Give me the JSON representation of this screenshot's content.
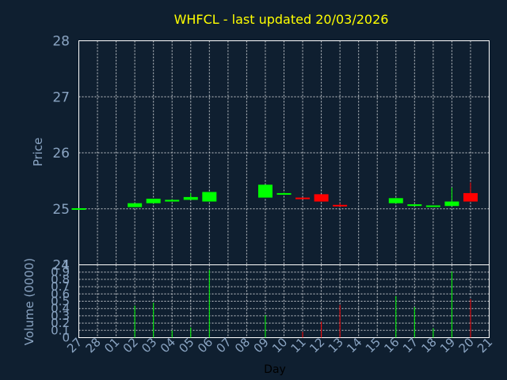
{
  "chart_data": {
    "type": "candlestick",
    "title": "WHFCL - last updated 20/03/2026",
    "xlabel": "Day",
    "ylabel": "Price",
    "volume_label": "Volume (0000)",
    "days": [
      "27",
      "28",
      "01",
      "02",
      "03",
      "04",
      "05",
      "06",
      "07",
      "08",
      "09",
      "10",
      "11",
      "12",
      "13",
      "14",
      "15",
      "16",
      "17",
      "18",
      "19",
      "20",
      "21"
    ],
    "price_ylim": [
      24,
      28
    ],
    "price_ticks": [
      24,
      25,
      26,
      27,
      28
    ],
    "volume_ylim": [
      0,
      1
    ],
    "volume_ticks": [
      "0",
      "0.1",
      "0.2",
      "0.3",
      "0.4",
      "0.5",
      "0.6",
      "0.7",
      "0.8",
      "0.9",
      "1"
    ],
    "grid": true,
    "candles": [
      {
        "day": "27",
        "open": 25.0,
        "close": 25.01,
        "high": 25.01,
        "low": 25.0,
        "color": "#00ff00"
      },
      {
        "day": "02",
        "open": 25.03,
        "close": 25.1,
        "high": 25.1,
        "low": 25.03,
        "color": "#00ff00"
      },
      {
        "day": "03",
        "open": 25.1,
        "close": 25.18,
        "high": 25.18,
        "low": 25.1,
        "color": "#00ff00"
      },
      {
        "day": "04",
        "open": 25.13,
        "close": 25.16,
        "high": 25.17,
        "low": 25.13,
        "color": "#00ff00"
      },
      {
        "day": "05",
        "open": 25.16,
        "close": 25.21,
        "high": 25.28,
        "low": 25.16,
        "color": "#00ff00"
      },
      {
        "day": "06",
        "open": 25.13,
        "close": 25.3,
        "high": 25.3,
        "low": 25.13,
        "color": "#00ff00"
      },
      {
        "day": "09",
        "open": 25.2,
        "close": 25.43,
        "high": 25.43,
        "low": 25.2,
        "color": "#00ff00"
      },
      {
        "day": "10",
        "open": 25.26,
        "close": 25.28,
        "high": 25.29,
        "low": 25.26,
        "color": "#00ff00"
      },
      {
        "day": "11",
        "open": 25.2,
        "close": 25.18,
        "high": 25.2,
        "low": 25.18,
        "color": "#ff0000"
      },
      {
        "day": "12",
        "open": 25.26,
        "close": 25.13,
        "high": 25.26,
        "low": 25.13,
        "color": "#ff0000"
      },
      {
        "day": "13",
        "open": 25.07,
        "close": 25.05,
        "high": 25.1,
        "low": 25.05,
        "color": "#ff0000"
      },
      {
        "day": "16",
        "open": 25.1,
        "close": 25.19,
        "high": 25.19,
        "low": 25.1,
        "color": "#00ff00"
      },
      {
        "day": "17",
        "open": 25.05,
        "close": 25.08,
        "high": 25.08,
        "low": 25.05,
        "color": "#00ff00"
      },
      {
        "day": "18",
        "open": 25.05,
        "close": 25.06,
        "high": 25.06,
        "low": 25.04,
        "color": "#00ff00"
      },
      {
        "day": "19",
        "open": 25.05,
        "close": 25.13,
        "high": 25.38,
        "low": 25.05,
        "color": "#00ff00"
      },
      {
        "day": "20",
        "open": 25.28,
        "close": 25.13,
        "high": 25.47,
        "low": 25.13,
        "color": "#ff0000"
      }
    ],
    "volumes": [
      {
        "day": "02",
        "value": 0.44,
        "color": "#00ff00"
      },
      {
        "day": "03",
        "value": 0.48,
        "color": "#00ff00"
      },
      {
        "day": "04",
        "value": 0.1,
        "color": "#00ff00"
      },
      {
        "day": "05",
        "value": 0.14,
        "color": "#00ff00"
      },
      {
        "day": "06",
        "value": 0.93,
        "color": "#00ff00"
      },
      {
        "day": "09",
        "value": 0.31,
        "color": "#00ff00"
      },
      {
        "day": "11",
        "value": 0.08,
        "color": "#ff0000"
      },
      {
        "day": "12",
        "value": 0.22,
        "color": "#ff0000"
      },
      {
        "day": "13",
        "value": 0.45,
        "color": "#ff0000"
      },
      {
        "day": "16",
        "value": 0.57,
        "color": "#00ff00"
      },
      {
        "day": "17",
        "value": 0.42,
        "color": "#00ff00"
      },
      {
        "day": "18",
        "value": 0.13,
        "color": "#00ff00"
      },
      {
        "day": "19",
        "value": 0.91,
        "color": "#00ff00"
      },
      {
        "day": "20",
        "value": 0.53,
        "color": "#ff0000"
      }
    ],
    "colors": {
      "background": "#0f1f30",
      "title": "#ffff00",
      "axis_text": "#8aa4c2",
      "xlabel": "#000000",
      "up": "#00ff00",
      "down": "#ff0000"
    }
  }
}
